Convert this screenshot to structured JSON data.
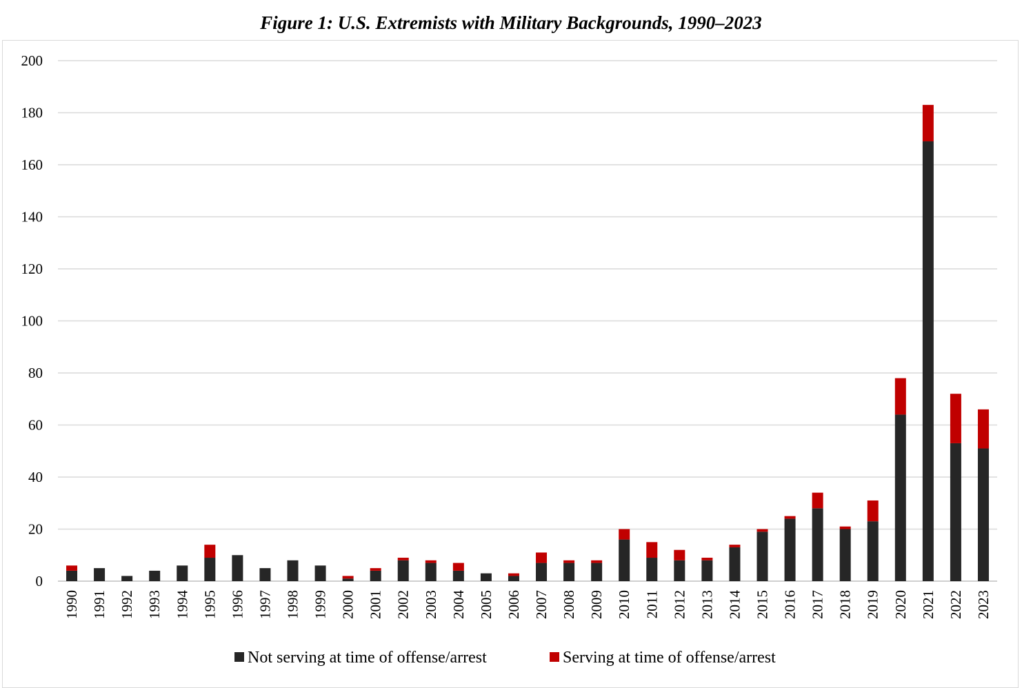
{
  "chart_data": {
    "type": "bar",
    "stacked": true,
    "title": "Figure 1: U.S. Extremists with Military Backgrounds, 1990–2023",
    "xlabel": "",
    "ylabel": "",
    "ylim": [
      0,
      200
    ],
    "y_ticks": [
      "0",
      "20",
      "40",
      "60",
      "80",
      "100",
      "120",
      "140",
      "160",
      "180",
      "200"
    ],
    "grid": true,
    "legend_position": "bottom",
    "categories": [
      "1990",
      "1991",
      "1992",
      "1993",
      "1994",
      "1995",
      "1996",
      "1997",
      "1998",
      "1999",
      "2000",
      "2001",
      "2002",
      "2003",
      "2004",
      "2005",
      "2006",
      "2007",
      "2008",
      "2009",
      "2010",
      "2011",
      "2012",
      "2013",
      "2014",
      "2015",
      "2016",
      "2017",
      "2018",
      "2019",
      "2020",
      "2021",
      "2022",
      "2023"
    ],
    "series": [
      {
        "name": "Not serving at time of offense/arrest",
        "color": "#262626",
        "values": [
          4,
          5,
          2,
          4,
          6,
          9,
          10,
          5,
          8,
          6,
          1,
          4,
          8,
          7,
          4,
          3,
          2,
          7,
          7,
          7,
          16,
          9,
          8,
          8,
          13,
          19,
          24,
          28,
          20,
          23,
          64,
          169,
          53,
          51
        ]
      },
      {
        "name": "Serving at time of offense/arrest",
        "color": "#c00000",
        "values": [
          2,
          0,
          0,
          0,
          0,
          5,
          0,
          0,
          0,
          0,
          1,
          1,
          1,
          1,
          3,
          0,
          1,
          4,
          1,
          1,
          4,
          6,
          4,
          1,
          1,
          1,
          1,
          6,
          1,
          8,
          14,
          14,
          19,
          15
        ]
      }
    ]
  }
}
